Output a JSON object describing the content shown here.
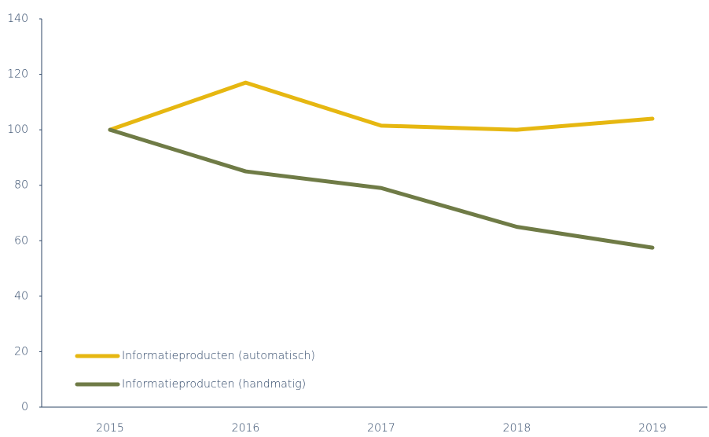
{
  "chart_data": {
    "type": "line",
    "categories": [
      "2015",
      "2016",
      "2017",
      "2018",
      "2019"
    ],
    "series": [
      {
        "name": "Informatieproducten (automatisch)",
        "color": "#e6b711",
        "values": [
          100,
          117,
          101.5,
          100,
          104
        ]
      },
      {
        "name": "Informatieproducten (handmatig)",
        "color": "#6f7b46",
        "values": [
          100,
          85,
          79,
          65,
          57.5
        ]
      }
    ],
    "ylim": [
      0,
      140
    ],
    "yticks": [
      0,
      20,
      40,
      60,
      80,
      100,
      120,
      140
    ],
    "grid": false,
    "legend": "lower left"
  }
}
